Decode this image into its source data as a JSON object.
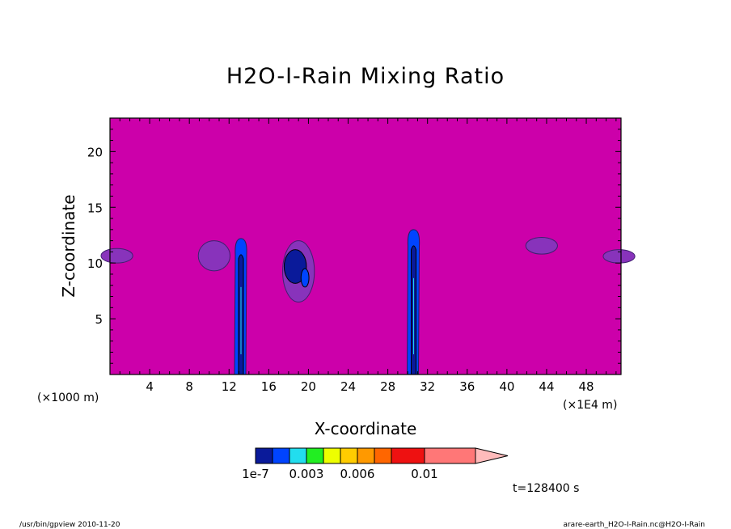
{
  "chart_data": {
    "type": "heatmap",
    "title": "H2O-I-Rain Mixing Ratio",
    "xlabel": "X-coordinate",
    "ylabel": "Z-coordinate",
    "x_unit_left": "(×1000 m)",
    "x_unit_right": "(×1E4 m)",
    "xlim": [
      0,
      51.5
    ],
    "ylim": [
      0,
      23
    ],
    "x_ticks": [
      4,
      8,
      12,
      16,
      20,
      24,
      28,
      32,
      36,
      40,
      44,
      48
    ],
    "y_ticks": [
      5,
      10,
      15,
      20
    ],
    "background_color": "#cc00aa",
    "colorbar": {
      "colors": [
        "#0a1a9a",
        "#0044ff",
        "#22ddee",
        "#22ee22",
        "#eeff00",
        "#ffcc00",
        "#ff9900",
        "#ff6600",
        "#ee1111",
        "#ff7777",
        "#ffbbbb"
      ],
      "labels": [
        "1e-7",
        "0.003",
        "0.006",
        "0.01"
      ]
    },
    "features": [
      {
        "x_center": 13.2,
        "z_range": [
          0,
          12.2
        ],
        "kind": "column"
      },
      {
        "x_center": 30.6,
        "z_range": [
          0,
          13.0
        ],
        "kind": "column"
      },
      {
        "x_center": 19.0,
        "z_range": [
          6.5,
          12.0
        ],
        "kind": "patch"
      },
      {
        "x_center": 10.5,
        "z_range": [
          9.3,
          12.0
        ],
        "kind": "patch"
      },
      {
        "x_center": 0.7,
        "z_range": [
          10.0,
          11.3
        ],
        "kind": "patch"
      },
      {
        "x_center": 43.5,
        "z_range": [
          10.8,
          12.3
        ],
        "kind": "patch"
      },
      {
        "x_center": 51.3,
        "z_range": [
          10.0,
          11.2
        ],
        "kind": "patch"
      }
    ],
    "time_label": "t=128400 s"
  },
  "footer": {
    "left": "/usr/bin/gpview  2010-11-20",
    "right": "arare-earth_H2O-I-Rain.nc@H2O-I-Rain"
  }
}
